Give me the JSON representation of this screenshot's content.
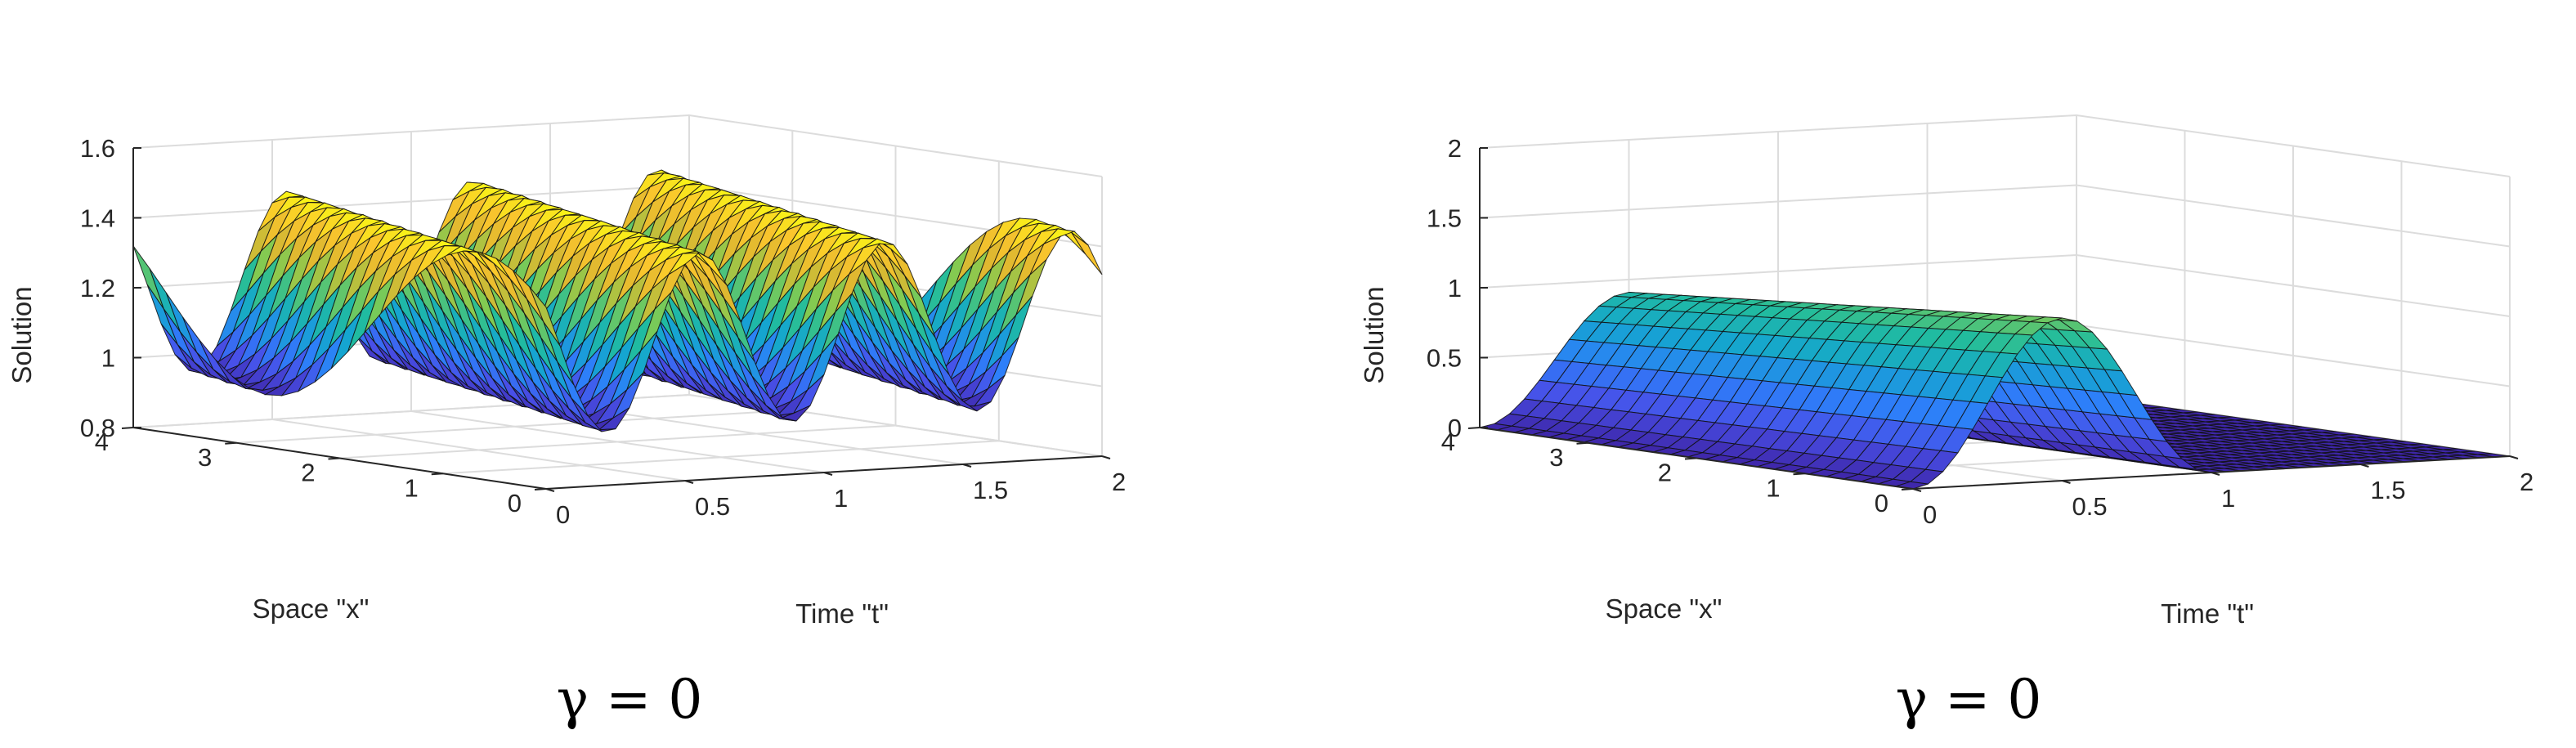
{
  "chart_data": [
    {
      "type": "surface",
      "caption": "γ = 0",
      "xlabel": "Space \"x\"",
      "ylabel": "Time \"t\"",
      "zlabel": "Solution",
      "xlim": [
        0,
        4
      ],
      "ylim": [
        0,
        2
      ],
      "zlim": [
        0.8,
        1.6
      ],
      "x_ticks": [
        "0",
        "1",
        "2",
        "3",
        "4"
      ],
      "y_ticks": [
        "0",
        "0.5",
        "1",
        "1.5",
        "2"
      ],
      "z_ticks": [
        "0.8",
        "1",
        "1.2",
        "1.4",
        "1.6"
      ],
      "grid": true,
      "colormap": [
        "#3e26a8",
        "#4850e8",
        "#2d7ff9",
        "#15a5d0",
        "#21bc9e",
        "#81cb52",
        "#dfb830",
        "#fac52d",
        "#f9fb14"
      ],
      "surface": {
        "formula": "u(x,t) = 1.2 + 0.25*sin(1.5708*x - 9.4248*t + 0.5)",
        "x_samples": 25,
        "t_samples": 40
      }
    },
    {
      "type": "surface",
      "caption": "γ = 0",
      "xlabel": "Space \"x\"",
      "ylabel": "Time \"t\"",
      "zlabel": "Solution",
      "xlim": [
        0,
        4
      ],
      "ylim": [
        0,
        2
      ],
      "zlim": [
        0,
        2.2
      ],
      "x_ticks": [
        "0",
        "1",
        "2",
        "3",
        "4"
      ],
      "y_ticks": [
        "0",
        "0.5",
        "1",
        "1.5",
        "2"
      ],
      "z_ticks": [
        "0",
        "0.5",
        "1",
        "1.5",
        "2"
      ],
      "grid": true,
      "colormap": [
        "#3e26a8",
        "#4850e8",
        "#2d7ff9",
        "#15a5d0",
        "#21bc9e",
        "#81cb52",
        "#dfb830",
        "#fac52d",
        "#f9fb14"
      ],
      "surface": {
        "formula": "u(x,t) = (1.0 + 0.07*(4-x)) * (0.5 - 0.5*cos(2*pi*t)) for 0 <= t <= 1, else 0",
        "x_samples": 25,
        "t_samples": 40
      }
    }
  ]
}
